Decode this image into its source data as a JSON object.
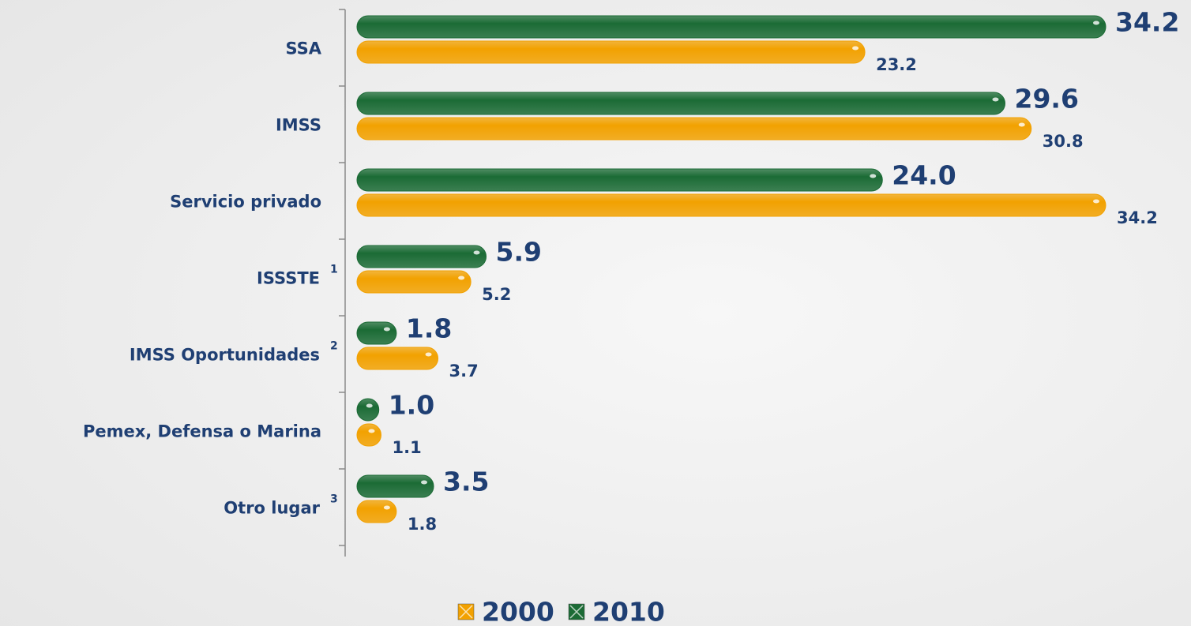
{
  "chart_data": {
    "type": "bar",
    "orientation": "horizontal",
    "categories": [
      "SSA",
      "IMSS",
      "Servicio privado",
      "ISSSTE",
      "IMSS Oportunidades",
      "Pemex, Defensa o Marina",
      "Otro lugar"
    ],
    "category_notes": [
      null,
      null,
      null,
      "1",
      "2",
      null,
      "3"
    ],
    "series": [
      {
        "name": "2000",
        "color": "#f2a100",
        "values": [
          23.2,
          30.8,
          34.2,
          5.2,
          3.7,
          1.1,
          1.8
        ],
        "value_labels": [
          "23.2",
          "30.8",
          "34.2",
          "5.2",
          "3.7",
          "1.1",
          "1.8"
        ]
      },
      {
        "name": "2010",
        "color": "#1b6b35",
        "values": [
          34.2,
          29.6,
          24.0,
          5.9,
          1.8,
          1.0,
          3.5
        ],
        "value_labels": [
          "34.2",
          "29.6",
          "24.0",
          "5.9",
          "1.8",
          "1.0",
          "3.5"
        ]
      }
    ],
    "legend": "bottom"
  }
}
